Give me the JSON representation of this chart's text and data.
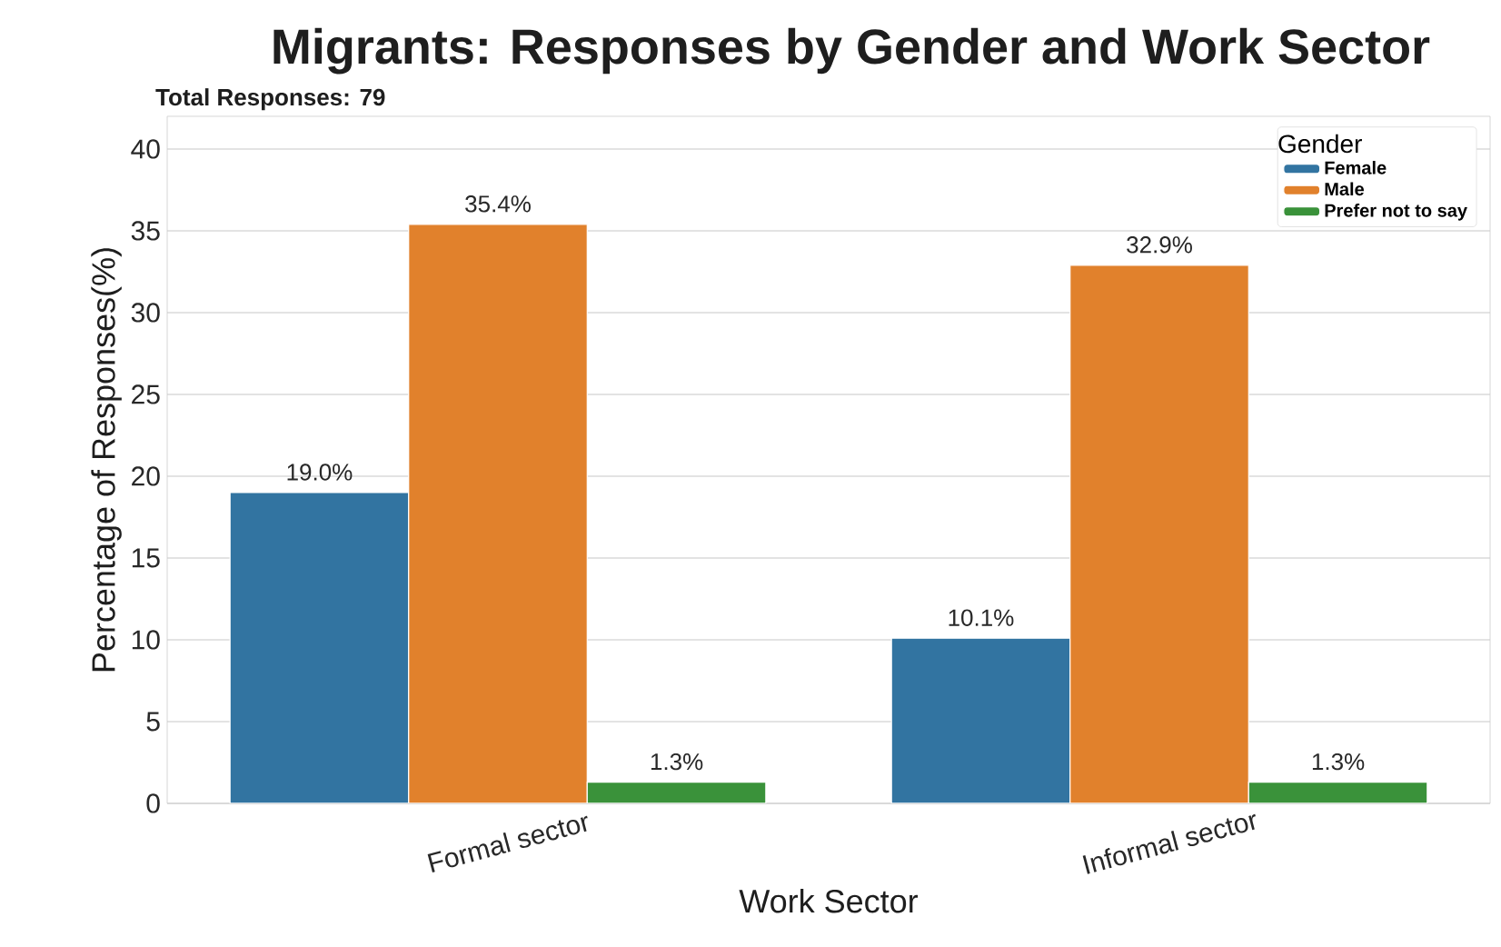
{
  "chart_data": {
    "type": "bar",
    "title": "Migrants: Responses by Gender and Work Sector",
    "subtitle": "Total Responses: 79",
    "xlabel": "Work Sector",
    "ylabel": "Percentage of Responses(%)",
    "legend_title": "Gender",
    "categories": [
      "Formal sector",
      "Informal sector"
    ],
    "series": [
      {
        "name": "Female",
        "color": "#3274a1",
        "values": [
          19.0,
          10.1
        ],
        "value_labels": [
          "19.0%",
          "10.1%"
        ]
      },
      {
        "name": "Male",
        "color": "#e1812c",
        "values": [
          35.4,
          32.9
        ],
        "value_labels": [
          "35.4%",
          "32.9%"
        ]
      },
      {
        "name": "Prefer not to say",
        "color": "#3a923a",
        "values": [
          1.3,
          1.3
        ],
        "value_labels": [
          "1.3%",
          "1.3%"
        ]
      }
    ],
    "ylim": [
      0,
      42
    ],
    "yticks": [
      0,
      5,
      10,
      15,
      20,
      25,
      30,
      35,
      40
    ],
    "grid": "y",
    "legend": "top right"
  }
}
